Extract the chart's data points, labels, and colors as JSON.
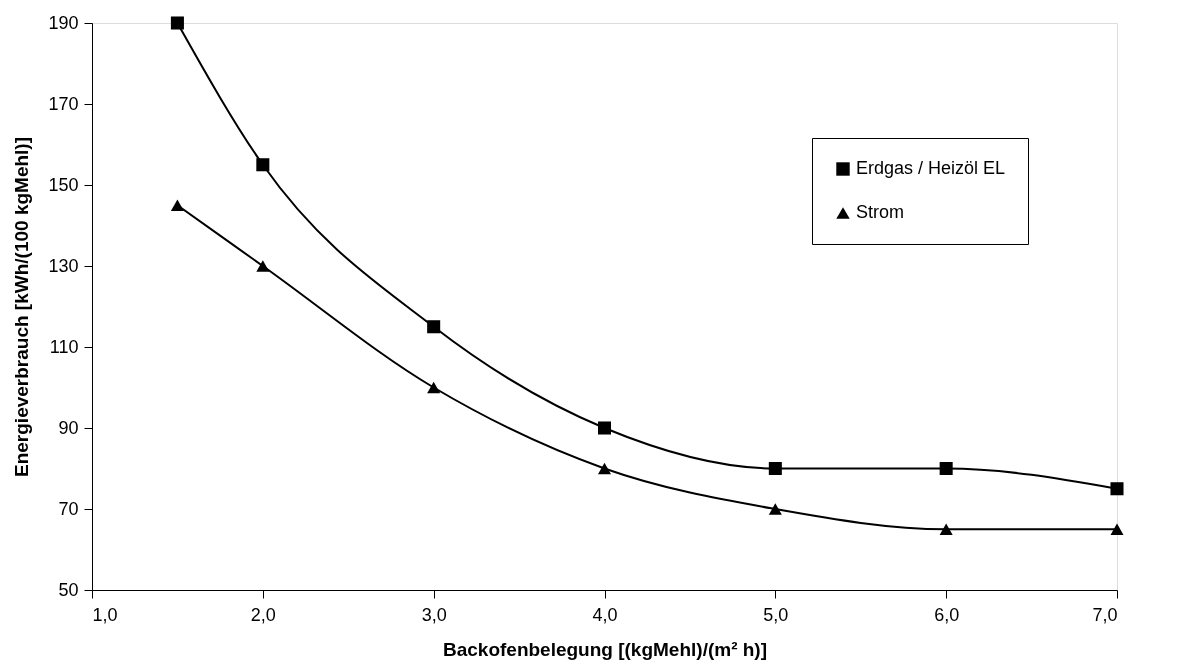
{
  "chart_data": {
    "type": "line",
    "xlabel": "Backofenbelegung [(kgMehl)/(m² h)]",
    "ylabel": "Energieverbrauch [kWh/(100 kgMehl)]",
    "x": [
      1.5,
      2,
      3,
      4,
      5,
      6,
      7
    ],
    "series": [
      {
        "name": "Erdgas / Heizöl EL",
        "color": "#000000",
        "marker": "square",
        "values": [
          190,
          155,
          115,
          90,
          80,
          80,
          75
        ]
      },
      {
        "name": "Strom",
        "color": "#000000",
        "marker": "triangle",
        "values": [
          145,
          130,
          100,
          80,
          70,
          65,
          65
        ]
      }
    ],
    "xlim": [
      1,
      7
    ],
    "xticks": [
      {
        "value": 1,
        "label": "1,0"
      },
      {
        "value": 2,
        "label": "2,0"
      },
      {
        "value": 3,
        "label": "3,0"
      },
      {
        "value": 4,
        "label": "4,0"
      },
      {
        "value": 5,
        "label": "5,0"
      },
      {
        "value": 6,
        "label": "6,0"
      },
      {
        "value": 7,
        "label": "7,0"
      }
    ],
    "ylim": [
      50,
      190
    ],
    "yticks": [
      50,
      70,
      90,
      110,
      130,
      150,
      170,
      190
    ],
    "grid": false,
    "legend": "top right",
    "line_style": "solid"
  }
}
